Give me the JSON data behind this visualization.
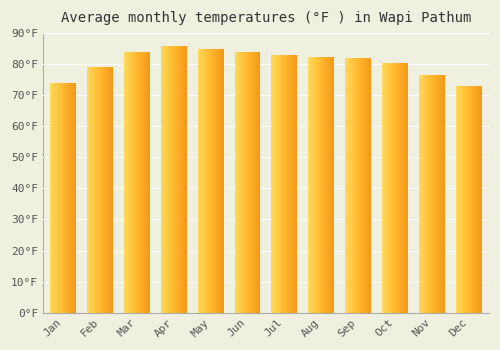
{
  "title": "Average monthly temperatures (°F ) in Wapi Pathum",
  "months": [
    "Jan",
    "Feb",
    "Mar",
    "Apr",
    "May",
    "Jun",
    "Jul",
    "Aug",
    "Sep",
    "Oct",
    "Nov",
    "Dec"
  ],
  "values": [
    74.0,
    79.0,
    84.0,
    86.0,
    85.0,
    84.0,
    83.0,
    82.5,
    82.0,
    80.5,
    76.5,
    73.0
  ],
  "bar_color_left": "#FFD966",
  "bar_color_right": "#F5A623",
  "bar_color_mid": "#FFB830",
  "background_color": "#f0f0e0",
  "grid_color": "#e8e8e8",
  "ylim": [
    0,
    90
  ],
  "yticks": [
    0,
    10,
    20,
    30,
    40,
    50,
    60,
    70,
    80,
    90
  ],
  "ytick_labels": [
    "0°F",
    "10°F",
    "20°F",
    "30°F",
    "40°F",
    "50°F",
    "60°F",
    "70°F",
    "80°F",
    "90°F"
  ],
  "title_fontsize": 10,
  "tick_fontsize": 8,
  "font_family": "monospace",
  "text_color": "#555555",
  "bar_width": 0.7,
  "n_gradient_steps": 50
}
